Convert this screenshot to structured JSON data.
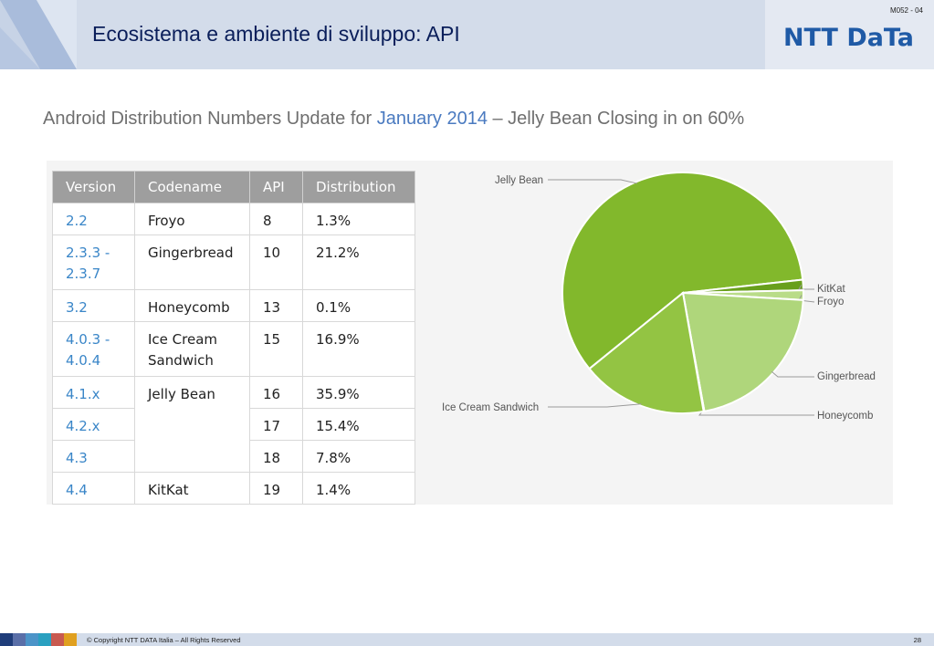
{
  "header": {
    "title": "Ecosistema e ambiente di sviluppo: API",
    "slide_code": "M052 - 04",
    "logo_text": "NTT DaTa"
  },
  "subtitle": {
    "prefix": "Android Distribution Numbers Update for ",
    "highlight": "January 2014",
    "suffix": " – Jelly Bean Closing in on 60%"
  },
  "table": {
    "headers": [
      "Version",
      "Codename",
      "API",
      "Distribution"
    ],
    "rows": [
      {
        "version": "2.2",
        "codename": "Froyo",
        "api": "8",
        "distribution": "1.3%"
      },
      {
        "version": "2.3.3 -\n2.3.7",
        "codename": "Gingerbread",
        "api": "10",
        "distribution": "21.2%"
      },
      {
        "version": "3.2",
        "codename": "Honeycomb",
        "api": "13",
        "distribution": "0.1%"
      },
      {
        "version": "4.0.3 -\n4.0.4",
        "codename": "Ice Cream\nSandwich",
        "api": "15",
        "distribution": "16.9%"
      },
      {
        "version": "4.1.x",
        "codename": "Jelly Bean",
        "api": "16",
        "distribution": "35.9%"
      },
      {
        "version": "4.2.x",
        "codename": "",
        "api": "17",
        "distribution": "15.4%"
      },
      {
        "version": "4.3",
        "codename": "",
        "api": "18",
        "distribution": "7.8%"
      },
      {
        "version": "4.4",
        "codename": "KitKat",
        "api": "19",
        "distribution": "1.4%"
      }
    ]
  },
  "chart_data": {
    "type": "pie",
    "slices": [
      {
        "label": "Jelly Bean",
        "value": 59.1,
        "color": "#82b82c"
      },
      {
        "label": "KitKat",
        "value": 1.4,
        "color": "#689f1c"
      },
      {
        "label": "Froyo",
        "value": 1.3,
        "color": "#b9dc88"
      },
      {
        "label": "Gingerbread",
        "value": 21.2,
        "color": "#afd67b"
      },
      {
        "label": "Honeycomb",
        "value": 0.1,
        "color": "#c5e29c"
      },
      {
        "label": "Ice Cream Sandwich",
        "value": 16.9,
        "color": "#93c443"
      }
    ]
  },
  "footer": {
    "copyright": "© Copyright NTT DATA Italia – All Rights Reserved",
    "page": "28",
    "square_colors": [
      "#1f3d7a",
      "#5a6fa8",
      "#4c94c8",
      "#2aa0c0",
      "#c85a50",
      "#e0a020"
    ]
  }
}
